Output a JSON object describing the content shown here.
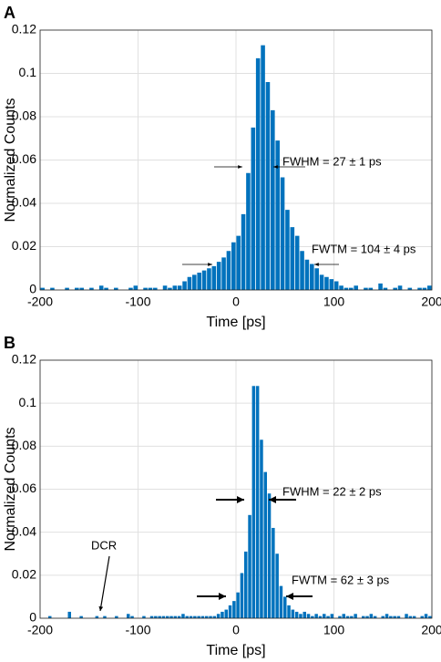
{
  "chart_data": [
    {
      "type": "histogram",
      "panel_label": "A",
      "xlabel": "Time [ps]",
      "ylabel": "Normalized Counts",
      "color": "#0072bd",
      "grid": true,
      "xlim": [
        -200,
        200
      ],
      "ylim": [
        0,
        0.12
      ],
      "xticks": [
        -200,
        -100,
        0,
        100,
        200
      ],
      "yticks": [
        0,
        0.02,
        0.04,
        0.06,
        0.08,
        0.1,
        0.12
      ],
      "bins": [
        -200,
        -195,
        -190,
        -185,
        -180,
        -175,
        -170,
        -165,
        -160,
        -155,
        -150,
        -145,
        -140,
        -135,
        -130,
        -125,
        -120,
        -115,
        -110,
        -105,
        -100,
        -95,
        -90,
        -85,
        -80,
        -75,
        -70,
        -65,
        -60,
        -55,
        -50,
        -45,
        -40,
        -35,
        -30,
        -25,
        -20,
        -15,
        -10,
        -5,
        0,
        5,
        10,
        15,
        20,
        25,
        30,
        35,
        40,
        45,
        50,
        55,
        60,
        65,
        70,
        75,
        80,
        85,
        90,
        95,
        100,
        105,
        110,
        115,
        120,
        125,
        130,
        135,
        140,
        145,
        150,
        155,
        160,
        165,
        170,
        175,
        180,
        185,
        190,
        195,
        200
      ],
      "values": [
        0.001,
        0,
        0.001,
        0,
        0,
        0.001,
        0,
        0.001,
        0.001,
        0,
        0.001,
        0,
        0.002,
        0.001,
        0,
        0.001,
        0,
        0,
        0.001,
        0.002,
        0,
        0.001,
        0.001,
        0.001,
        0,
        0.002,
        0.001,
        0.002,
        0.002,
        0.004,
        0.006,
        0.007,
        0.008,
        0.009,
        0.01,
        0.011,
        0.013,
        0.015,
        0.018,
        0.022,
        0.025,
        0.035,
        0.054,
        0.075,
        0.107,
        0.113,
        0.096,
        0.083,
        0.069,
        0.052,
        0.037,
        0.029,
        0.025,
        0.018,
        0.014,
        0.012,
        0.01,
        0.007,
        0.006,
        0.005,
        0.004,
        0.002,
        0.001,
        0.001,
        0.002,
        0,
        0.001,
        0.001,
        0,
        0.003,
        0.001,
        0,
        0.001,
        0.002,
        0,
        0.001,
        0,
        0.001,
        0.001,
        0.002
      ],
      "annotations": [
        {
          "text": "FWHM = 27 ± 1 ps"
        },
        {
          "text": "FWTM = 104 ± 4 ps"
        }
      ]
    },
    {
      "type": "histogram",
      "panel_label": "B",
      "xlabel": "Time [ps]",
      "ylabel": "Normalized Counts",
      "color": "#0072bd",
      "grid": true,
      "xlim": [
        -200,
        200
      ],
      "ylim": [
        0,
        0.12
      ],
      "xticks": [
        -200,
        -100,
        0,
        100,
        200
      ],
      "yticks": [
        0,
        0.02,
        0.04,
        0.06,
        0.08,
        0.1,
        0.12
      ],
      "bins": [
        -200,
        -196,
        -192,
        -188,
        -184,
        -180,
        -176,
        -172,
        -168,
        -164,
        -160,
        -156,
        -152,
        -148,
        -144,
        -140,
        -136,
        -132,
        -128,
        -124,
        -120,
        -116,
        -112,
        -108,
        -104,
        -100,
        -96,
        -92,
        -88,
        -84,
        -80,
        -76,
        -72,
        -68,
        -64,
        -60,
        -56,
        -52,
        -48,
        -44,
        -40,
        -36,
        -32,
        -28,
        -24,
        -20,
        -16,
        -12,
        -8,
        -4,
        0,
        4,
        8,
        12,
        16,
        20,
        24,
        28,
        32,
        36,
        40,
        44,
        48,
        52,
        56,
        60,
        64,
        68,
        72,
        76,
        80,
        84,
        88,
        92,
        96,
        100,
        104,
        108,
        112,
        116,
        120,
        124,
        128,
        132,
        136,
        140,
        144,
        148,
        152,
        156,
        160,
        164,
        168,
        172,
        176,
        180,
        184,
        188,
        192,
        196,
        200
      ],
      "values": [
        0,
        0,
        0.001,
        0,
        0,
        0,
        0,
        0.003,
        0,
        0,
        0.001,
        0,
        0,
        0,
        0.001,
        0,
        0.001,
        0,
        0,
        0.001,
        0,
        0,
        0.002,
        0.001,
        0,
        0,
        0.001,
        0,
        0.001,
        0.001,
        0.001,
        0.001,
        0.001,
        0.001,
        0.001,
        0.001,
        0.002,
        0.001,
        0.001,
        0.001,
        0.001,
        0.001,
        0.001,
        0.001,
        0.001,
        0.002,
        0.003,
        0.004,
        0.006,
        0.008,
        0.012,
        0.021,
        0.031,
        0.048,
        0.108,
        0.108,
        0.083,
        0.068,
        0.058,
        0.042,
        0.03,
        0.015,
        0.01,
        0.006,
        0.004,
        0.003,
        0.002,
        0.003,
        0.002,
        0.001,
        0.002,
        0.001,
        0.002,
        0.001,
        0.002,
        0,
        0.001,
        0.002,
        0.001,
        0.001,
        0.002,
        0,
        0.001,
        0.001,
        0.002,
        0.001,
        0,
        0.001,
        0.002,
        0.001,
        0.001,
        0.001,
        0,
        0.002,
        0.001,
        0.001,
        0,
        0.001,
        0.002,
        0.001
      ],
      "annotations": [
        {
          "text": "FWHM = 22 ± 2 ps"
        },
        {
          "text": "FWTM = 62 ± 3 ps"
        },
        {
          "text": "DCR"
        }
      ]
    }
  ]
}
